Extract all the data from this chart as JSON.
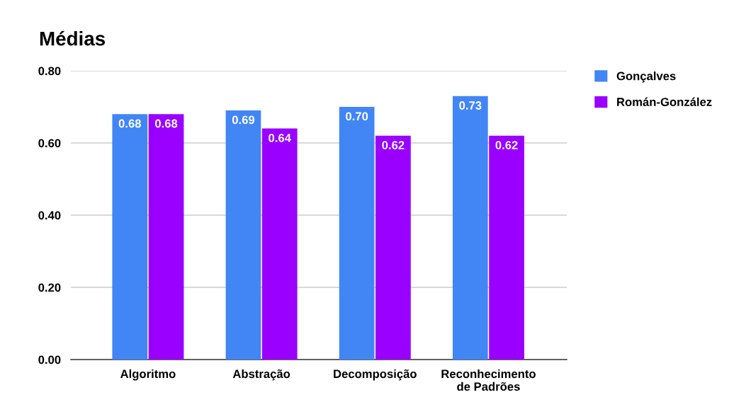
{
  "chart_data": {
    "type": "bar",
    "title": "Médias",
    "categories": [
      "Algoritmo",
      "Abstração",
      "Decomposição",
      "Reconhecimento\nde Padrões"
    ],
    "series": [
      {
        "name": "Gonçalves",
        "color": "#4285f4",
        "values": [
          0.68,
          0.69,
          0.7,
          0.73
        ],
        "value_labels": [
          "0.68",
          "0.69",
          "0.70",
          "0.73"
        ]
      },
      {
        "name": "Román-González",
        "color": "#9900ff",
        "values": [
          0.68,
          0.64,
          0.62,
          0.62
        ],
        "value_labels": [
          "0.68",
          "0.64",
          "0.62",
          "0.62"
        ]
      }
    ],
    "ylim": [
      0,
      0.8
    ],
    "yticks": [
      {
        "value": 0,
        "label": "0.00"
      },
      {
        "value": 0.2,
        "label": "0.20"
      },
      {
        "value": 0.4,
        "label": "0.40"
      },
      {
        "value": 0.6,
        "label": "0.60"
      },
      {
        "value": 0.8,
        "label": "0.80"
      }
    ],
    "grid": "y",
    "legend": "right"
  }
}
